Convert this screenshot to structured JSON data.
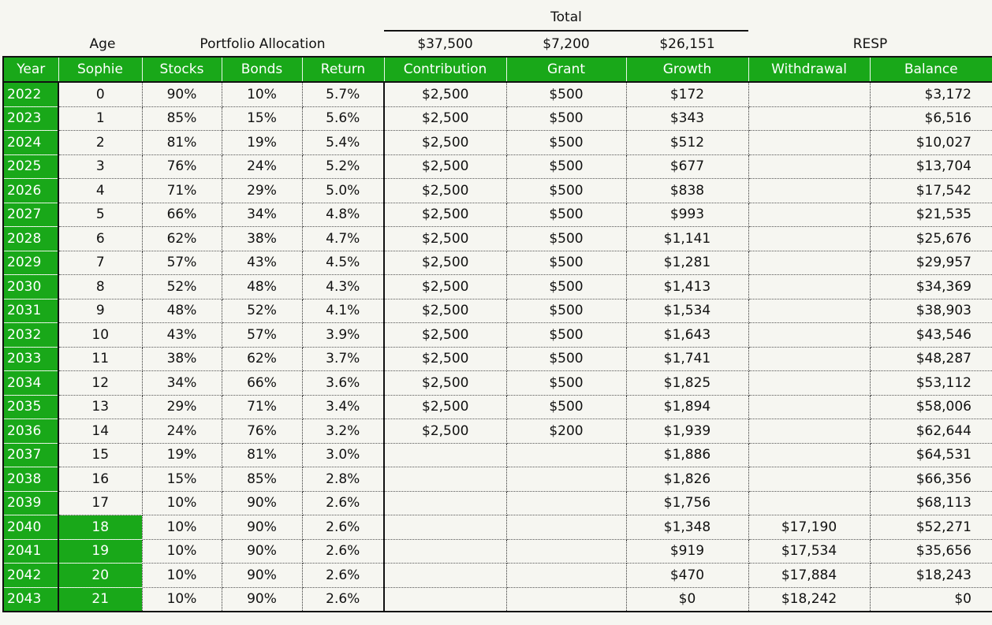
{
  "super_headers": {
    "total": "Total",
    "age": "Age",
    "portfolio_allocation": "Portfolio Allocation",
    "total_contribution": "$37,500",
    "total_grant": "$7,200",
    "total_growth": "$26,151",
    "resp": "RESP"
  },
  "columns": [
    "Year",
    "Sophie",
    "Stocks",
    "Bonds",
    "Return",
    "Contribution",
    "Grant",
    "Growth",
    "Withdrawal",
    "Balance"
  ],
  "rows": [
    [
      "2022",
      "0",
      "90%",
      "10%",
      "5.7%",
      "$2,500",
      "$500",
      "$172",
      "",
      "$3,172"
    ],
    [
      "2023",
      "1",
      "85%",
      "15%",
      "5.6%",
      "$2,500",
      "$500",
      "$343",
      "",
      "$6,516"
    ],
    [
      "2024",
      "2",
      "81%",
      "19%",
      "5.4%",
      "$2,500",
      "$500",
      "$512",
      "",
      "$10,027"
    ],
    [
      "2025",
      "3",
      "76%",
      "24%",
      "5.2%",
      "$2,500",
      "$500",
      "$677",
      "",
      "$13,704"
    ],
    [
      "2026",
      "4",
      "71%",
      "29%",
      "5.0%",
      "$2,500",
      "$500",
      "$838",
      "",
      "$17,542"
    ],
    [
      "2027",
      "5",
      "66%",
      "34%",
      "4.8%",
      "$2,500",
      "$500",
      "$993",
      "",
      "$21,535"
    ],
    [
      "2028",
      "6",
      "62%",
      "38%",
      "4.7%",
      "$2,500",
      "$500",
      "$1,141",
      "",
      "$25,676"
    ],
    [
      "2029",
      "7",
      "57%",
      "43%",
      "4.5%",
      "$2,500",
      "$500",
      "$1,281",
      "",
      "$29,957"
    ],
    [
      "2030",
      "8",
      "52%",
      "48%",
      "4.3%",
      "$2,500",
      "$500",
      "$1,413",
      "",
      "$34,369"
    ],
    [
      "2031",
      "9",
      "48%",
      "52%",
      "4.1%",
      "$2,500",
      "$500",
      "$1,534",
      "",
      "$38,903"
    ],
    [
      "2032",
      "10",
      "43%",
      "57%",
      "3.9%",
      "$2,500",
      "$500",
      "$1,643",
      "",
      "$43,546"
    ],
    [
      "2033",
      "11",
      "38%",
      "62%",
      "3.7%",
      "$2,500",
      "$500",
      "$1,741",
      "",
      "$48,287"
    ],
    [
      "2034",
      "12",
      "34%",
      "66%",
      "3.6%",
      "$2,500",
      "$500",
      "$1,825",
      "",
      "$53,112"
    ],
    [
      "2035",
      "13",
      "29%",
      "71%",
      "3.4%",
      "$2,500",
      "$500",
      "$1,894",
      "",
      "$58,006"
    ],
    [
      "2036",
      "14",
      "24%",
      "76%",
      "3.2%",
      "$2,500",
      "$200",
      "$1,939",
      "",
      "$62,644"
    ],
    [
      "2037",
      "15",
      "19%",
      "81%",
      "3.0%",
      "",
      "",
      "$1,886",
      "",
      "$64,531"
    ],
    [
      "2038",
      "16",
      "15%",
      "85%",
      "2.8%",
      "",
      "",
      "$1,826",
      "",
      "$66,356"
    ],
    [
      "2039",
      "17",
      "10%",
      "90%",
      "2.6%",
      "",
      "",
      "$1,756",
      "",
      "$68,113"
    ],
    [
      "2040",
      "18",
      "10%",
      "90%",
      "2.6%",
      "",
      "",
      "$1,348",
      "$17,190",
      "$52,271"
    ],
    [
      "2041",
      "19",
      "10%",
      "90%",
      "2.6%",
      "",
      "",
      "$919",
      "$17,534",
      "$35,656"
    ],
    [
      "2042",
      "20",
      "10%",
      "90%",
      "2.6%",
      "",
      "",
      "$470",
      "$17,884",
      "$18,243"
    ],
    [
      "2043",
      "21",
      "10%",
      "90%",
      "2.6%",
      "",
      "",
      "$0",
      "$18,242",
      "$0"
    ]
  ],
  "highlight_age_from_year": "2040",
  "colors": {
    "header_green": "#19a819",
    "background": "#f6f6f1"
  }
}
